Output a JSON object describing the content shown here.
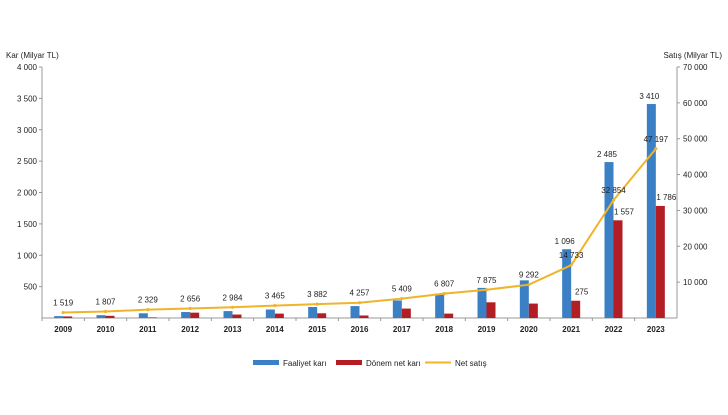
{
  "chart_data": {
    "type": "bar",
    "categories": [
      "2009",
      "2010",
      "2011",
      "2012",
      "2013",
      "2014",
      "2015",
      "2016",
      "2017",
      "2018",
      "2019",
      "2020",
      "2021",
      "2022",
      "2023"
    ],
    "y_left_label": "Kar (Milyar TL)",
    "y_right_label": "Satış (Milyar TL)",
    "y_left_lim": [
      0,
      4000
    ],
    "y_right_lim": [
      0,
      70000
    ],
    "y_left_ticks": [
      "500",
      "1 000",
      "1 500",
      "2 000",
      "2 500",
      "3 000",
      "3 500",
      "4 000"
    ],
    "y_right_ticks": [
      "10 000",
      "20 000",
      "30 000",
      "40 000",
      "50 000",
      "60 000",
      "70 000"
    ],
    "series": [
      {
        "name": "Faaliyet karı",
        "type": "bar",
        "axis": "left",
        "color": "#3b7fc4",
        "values": [
          30,
          45,
          75,
          95,
          110,
          135,
          175,
          190,
          280,
          390,
          480,
          600,
          1096,
          2485,
          3410
        ],
        "labels": [
          "",
          "",
          "",
          "",
          "",
          "",
          "",
          "",
          "",
          "",
          "",
          "",
          "1 096",
          "2 485",
          "3 410"
        ]
      },
      {
        "name": "Dönem net karı",
        "type": "bar",
        "axis": "left",
        "color": "#b21e24",
        "values": [
          25,
          35,
          10,
          85,
          55,
          70,
          75,
          40,
          150,
          70,
          250,
          230,
          275,
          1557,
          1786
        ],
        "labels": [
          "",
          "",
          "",
          "",
          "",
          "",
          "",
          "",
          "",
          "",
          "",
          "",
          "275",
          "1 557",
          "1 786"
        ]
      },
      {
        "name": "Net satış",
        "type": "line",
        "axis": "right",
        "color": "#f0b429",
        "values": [
          1519,
          1807,
          2329,
          2656,
          2984,
          3465,
          3882,
          4257,
          5409,
          6807,
          7875,
          9292,
          14733,
          32854,
          47197
        ],
        "labels": [
          "1 519",
          "1 807",
          "2 329",
          "2 656",
          "2 984",
          "3 465",
          "3 882",
          "4 257",
          "5 409",
          "6 807",
          "7 875",
          "9 292",
          "14 733",
          "32 854",
          "47 197"
        ]
      }
    ],
    "legend_position": "bottom-center",
    "grid": false
  }
}
